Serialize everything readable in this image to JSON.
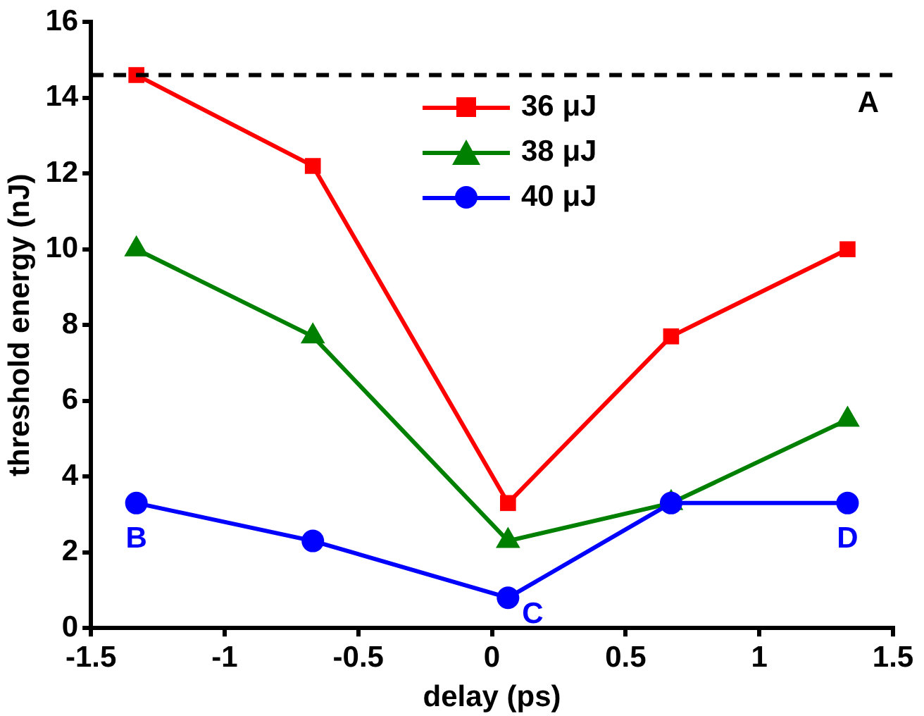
{
  "chart_data": {
    "type": "line",
    "xlabel": "delay (ps)",
    "ylabel": "threshold energy (nJ)",
    "x": [
      -1.33,
      -0.67,
      0.06,
      0.67,
      1.33
    ],
    "series": [
      {
        "name": "36 μJ",
        "color": "#ff0000",
        "marker": "square",
        "values": [
          14.6,
          12.2,
          3.3,
          7.7,
          10
        ]
      },
      {
        "name": "38 μJ",
        "color": "#008000",
        "marker": "triangle",
        "values": [
          10,
          7.7,
          2.3,
          3.3,
          5.5
        ]
      },
      {
        "name": "40 μJ",
        "color": "#0000ff",
        "marker": "circle",
        "values": [
          3.3,
          2.3,
          0.8,
          3.3,
          3.3
        ]
      }
    ],
    "xlim": [
      -1.5,
      1.5
    ],
    "xticks": [
      -1.5,
      -1,
      -0.5,
      0,
      0.5,
      1,
      1.5
    ],
    "ylim": [
      0,
      16
    ],
    "yticks": [
      0,
      2,
      4,
      6,
      8,
      10,
      12,
      14,
      16
    ],
    "ref_lines": [
      {
        "axis": "y",
        "value": 14.6,
        "label": "A",
        "color": "#000000",
        "line_style": "dashed"
      }
    ],
    "annotations": [
      {
        "text": "B",
        "x": -1.33,
        "y": 3.3
      },
      {
        "text": "C",
        "x": 0.06,
        "y": 0.8
      },
      {
        "text": "D",
        "x": 1.33,
        "y": 3.3
      }
    ],
    "legend": "top",
    "grid": false,
    "line_style": "solid"
  }
}
